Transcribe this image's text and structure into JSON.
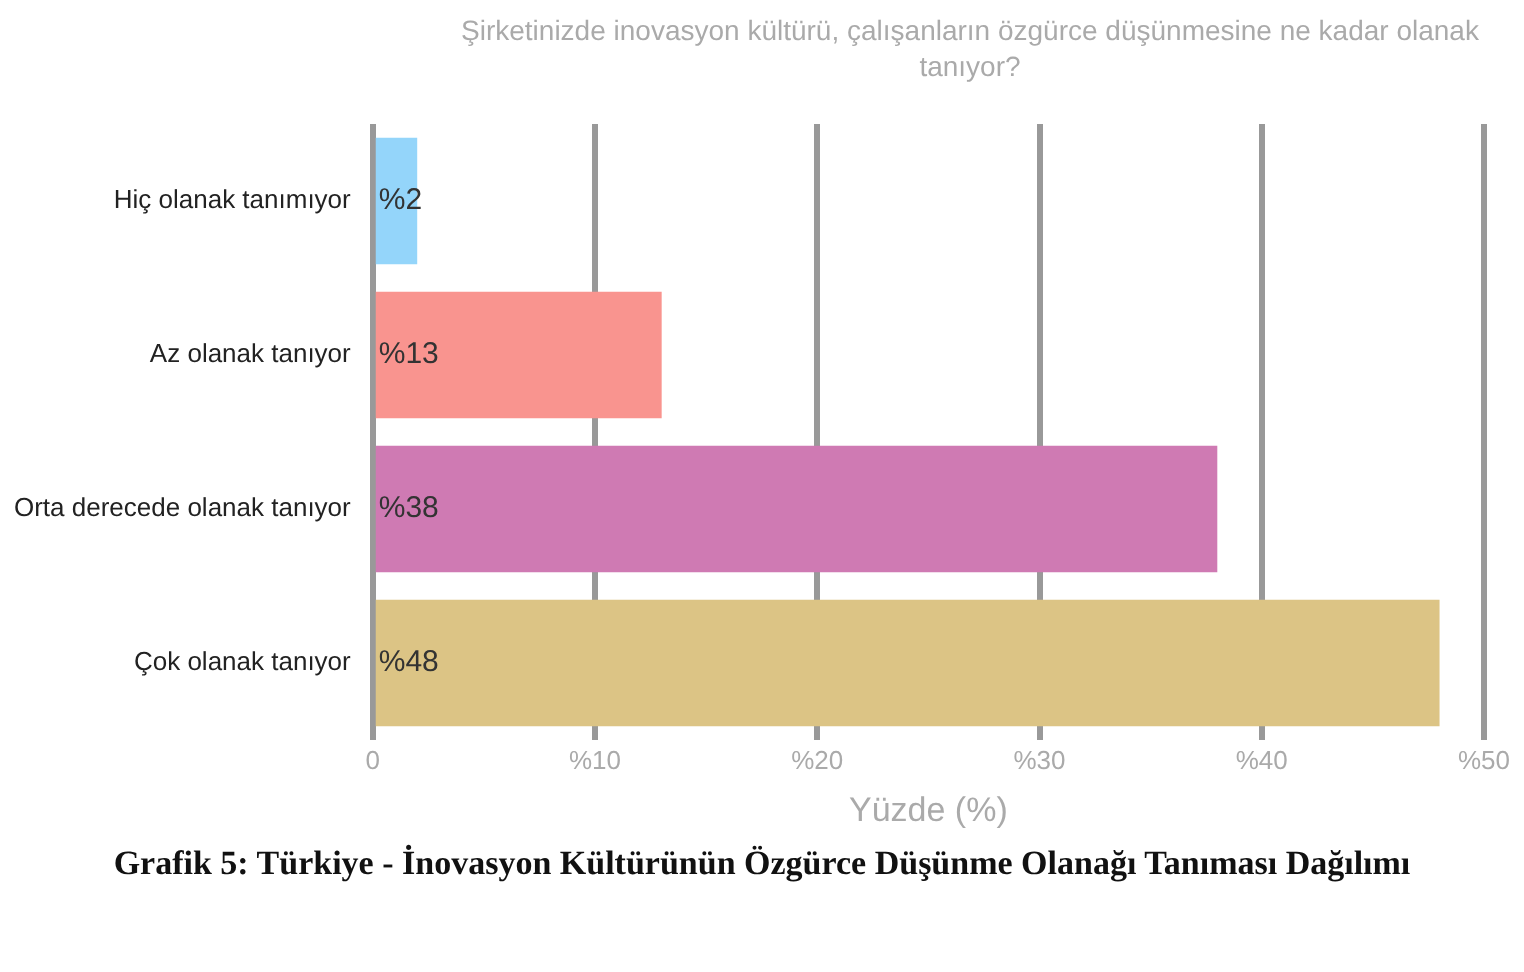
{
  "chart_data": {
    "type": "bar",
    "orientation": "horizontal",
    "title": "Şirketinizde inovasyon kültürü, çalışanların özgürce düşünmesine ne kadar olanak tanıyor?",
    "xlabel": "Yüzde (%)",
    "categories": [
      "Hiç olanak tanımıyor",
      "Az olanak tanıyor",
      "Orta derecede olanak tanıyor",
      "Çok olanak tanıyor"
    ],
    "values": [
      2,
      13,
      38,
      48
    ],
    "value_labels": [
      "%2",
      "%13",
      "%38",
      "%48"
    ],
    "colors": [
      "#94d5fa",
      "#f9948f",
      "#cf7ab3",
      "#dcc485"
    ],
    "xlim": [
      0,
      50
    ],
    "xticks": [
      0,
      {
        "value": 10,
        "label": "%10"
      },
      {
        "value": 20,
        "label": "%20"
      },
      {
        "value": 30,
        "label": "%30"
      },
      {
        "value": 40,
        "label": "%40"
      },
      {
        "value": 50,
        "label": "%50"
      }
    ],
    "grid": "x",
    "legend": false,
    "annotations": [
      "Grafik 5: Türkiye - İnovasyon Kültürünün Özgürce Düşünme Olanağı Tanıması Dağılımı"
    ]
  }
}
